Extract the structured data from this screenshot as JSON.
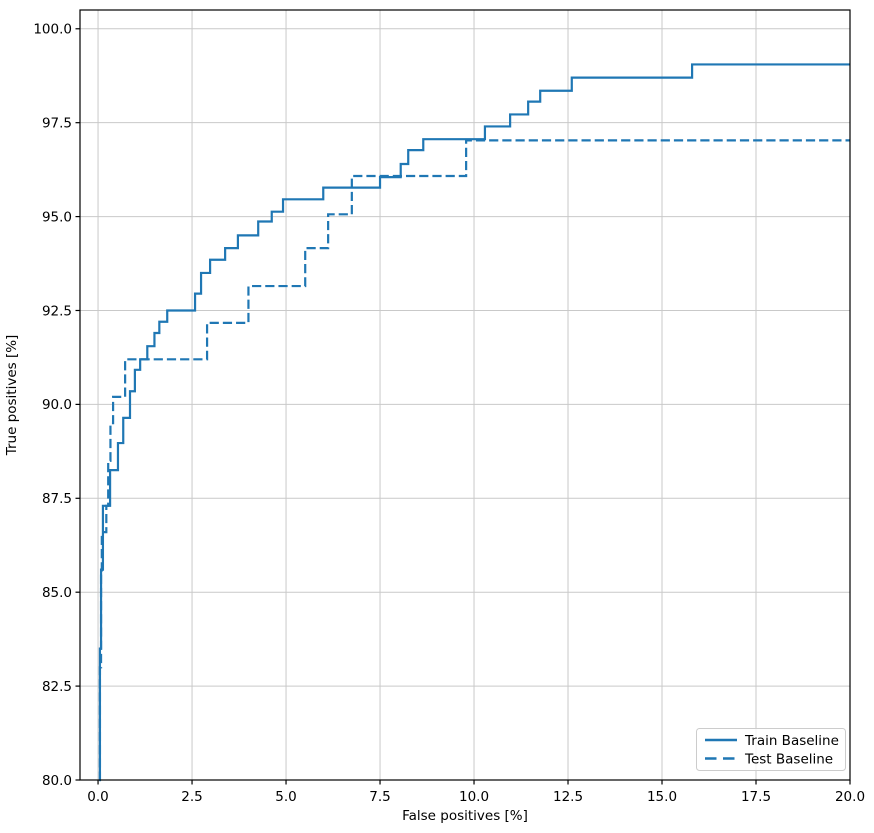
{
  "chart_data": {
    "type": "line",
    "subtype": "roc-step-curves",
    "title": "",
    "xlabel": "False positives [%]",
    "ylabel": "True positives [%]",
    "xlim": [
      -0.48,
      20.0
    ],
    "ylim": [
      80.0,
      100.5
    ],
    "grid": true,
    "xtick_values": [
      0.0,
      2.5,
      5.0,
      7.5,
      10.0,
      12.5,
      15.0,
      17.5,
      20.0
    ],
    "ytick_values": [
      80.0,
      82.5,
      85.0,
      87.5,
      90.0,
      92.5,
      95.0,
      97.5,
      100.0
    ],
    "xticks": [
      "0.0",
      "2.5",
      "5.0",
      "7.5",
      "10.0",
      "12.5",
      "15.0",
      "17.5",
      "20.0"
    ],
    "yticks": [
      "80.0",
      "82.5",
      "85.0",
      "87.5",
      "90.0",
      "92.5",
      "95.0",
      "97.5",
      "100.0"
    ],
    "legend": {
      "position": "lower right",
      "entries": [
        "Train Baseline",
        "Test Baseline"
      ]
    },
    "colors": {
      "line": "#1f77b4",
      "grid": "#c9c9c9",
      "spine": "#000000",
      "text": "#000000",
      "background": "#ffffff",
      "legend_border": "#cccccc",
      "legend_background": "#ffffff"
    },
    "step_mode": "post",
    "series": [
      {
        "name": "Train Baseline",
        "style": "solid",
        "points": [
          [
            0.03,
            80.0
          ],
          [
            0.05,
            83.5
          ],
          [
            0.08,
            85.6
          ],
          [
            0.13,
            87.3
          ],
          [
            0.32,
            88.25
          ],
          [
            0.53,
            88.97
          ],
          [
            0.67,
            89.64
          ],
          [
            0.85,
            90.35
          ],
          [
            0.98,
            90.92
          ],
          [
            1.12,
            91.2
          ],
          [
            1.31,
            91.55
          ],
          [
            1.5,
            91.9
          ],
          [
            1.63,
            92.2
          ],
          [
            1.84,
            92.5
          ],
          [
            2.58,
            92.95
          ],
          [
            2.74,
            93.5
          ],
          [
            2.98,
            93.85
          ],
          [
            3.38,
            94.16
          ],
          [
            3.72,
            94.5
          ],
          [
            4.26,
            94.87
          ],
          [
            4.62,
            95.13
          ],
          [
            4.92,
            95.46
          ],
          [
            5.99,
            95.77
          ],
          [
            7.5,
            96.05
          ],
          [
            8.05,
            96.4
          ],
          [
            8.25,
            96.77
          ],
          [
            8.65,
            97.06
          ],
          [
            10.29,
            97.4
          ],
          [
            10.96,
            97.72
          ],
          [
            11.44,
            98.06
          ],
          [
            11.76,
            98.35
          ],
          [
            12.6,
            98.7
          ],
          [
            15.8,
            99.05
          ],
          [
            20.0,
            99.05
          ]
        ]
      },
      {
        "name": "Test Baseline",
        "style": "dashed",
        "points": [
          [
            0.03,
            80.0
          ],
          [
            0.05,
            83.0
          ],
          [
            0.08,
            85.5
          ],
          [
            0.1,
            86.6
          ],
          [
            0.22,
            87.3
          ],
          [
            0.27,
            88.5
          ],
          [
            0.33,
            89.5
          ],
          [
            0.4,
            90.2
          ],
          [
            0.72,
            91.2
          ],
          [
            2.9,
            92.17
          ],
          [
            4.0,
            93.15
          ],
          [
            5.51,
            94.16
          ],
          [
            6.12,
            95.06
          ],
          [
            6.75,
            96.08
          ],
          [
            9.79,
            97.03
          ],
          [
            20.0,
            97.03
          ]
        ]
      }
    ]
  }
}
